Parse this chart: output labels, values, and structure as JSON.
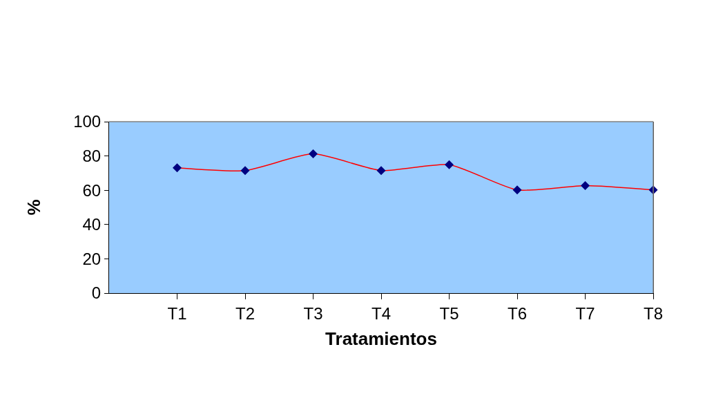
{
  "chart_data": {
    "type": "line",
    "xlabel": "Tratamientos",
    "ylabel": "%",
    "categories": [
      null,
      "T1",
      "T2",
      "T3",
      "T4",
      "T5",
      "T6",
      "T7",
      "T8"
    ],
    "series": [
      {
        "color": "#ff0000",
        "values": [
          null,
          73.1,
          71.5,
          81.2,
          71.5,
          74.9,
          60.2,
          62.7,
          60.2
        ]
      }
    ],
    "marker": "diamond",
    "ylim": [
      0,
      100
    ],
    "yticks": [
      0,
      20,
      40,
      60,
      80,
      100
    ],
    "grid": false,
    "legend": false
  }
}
